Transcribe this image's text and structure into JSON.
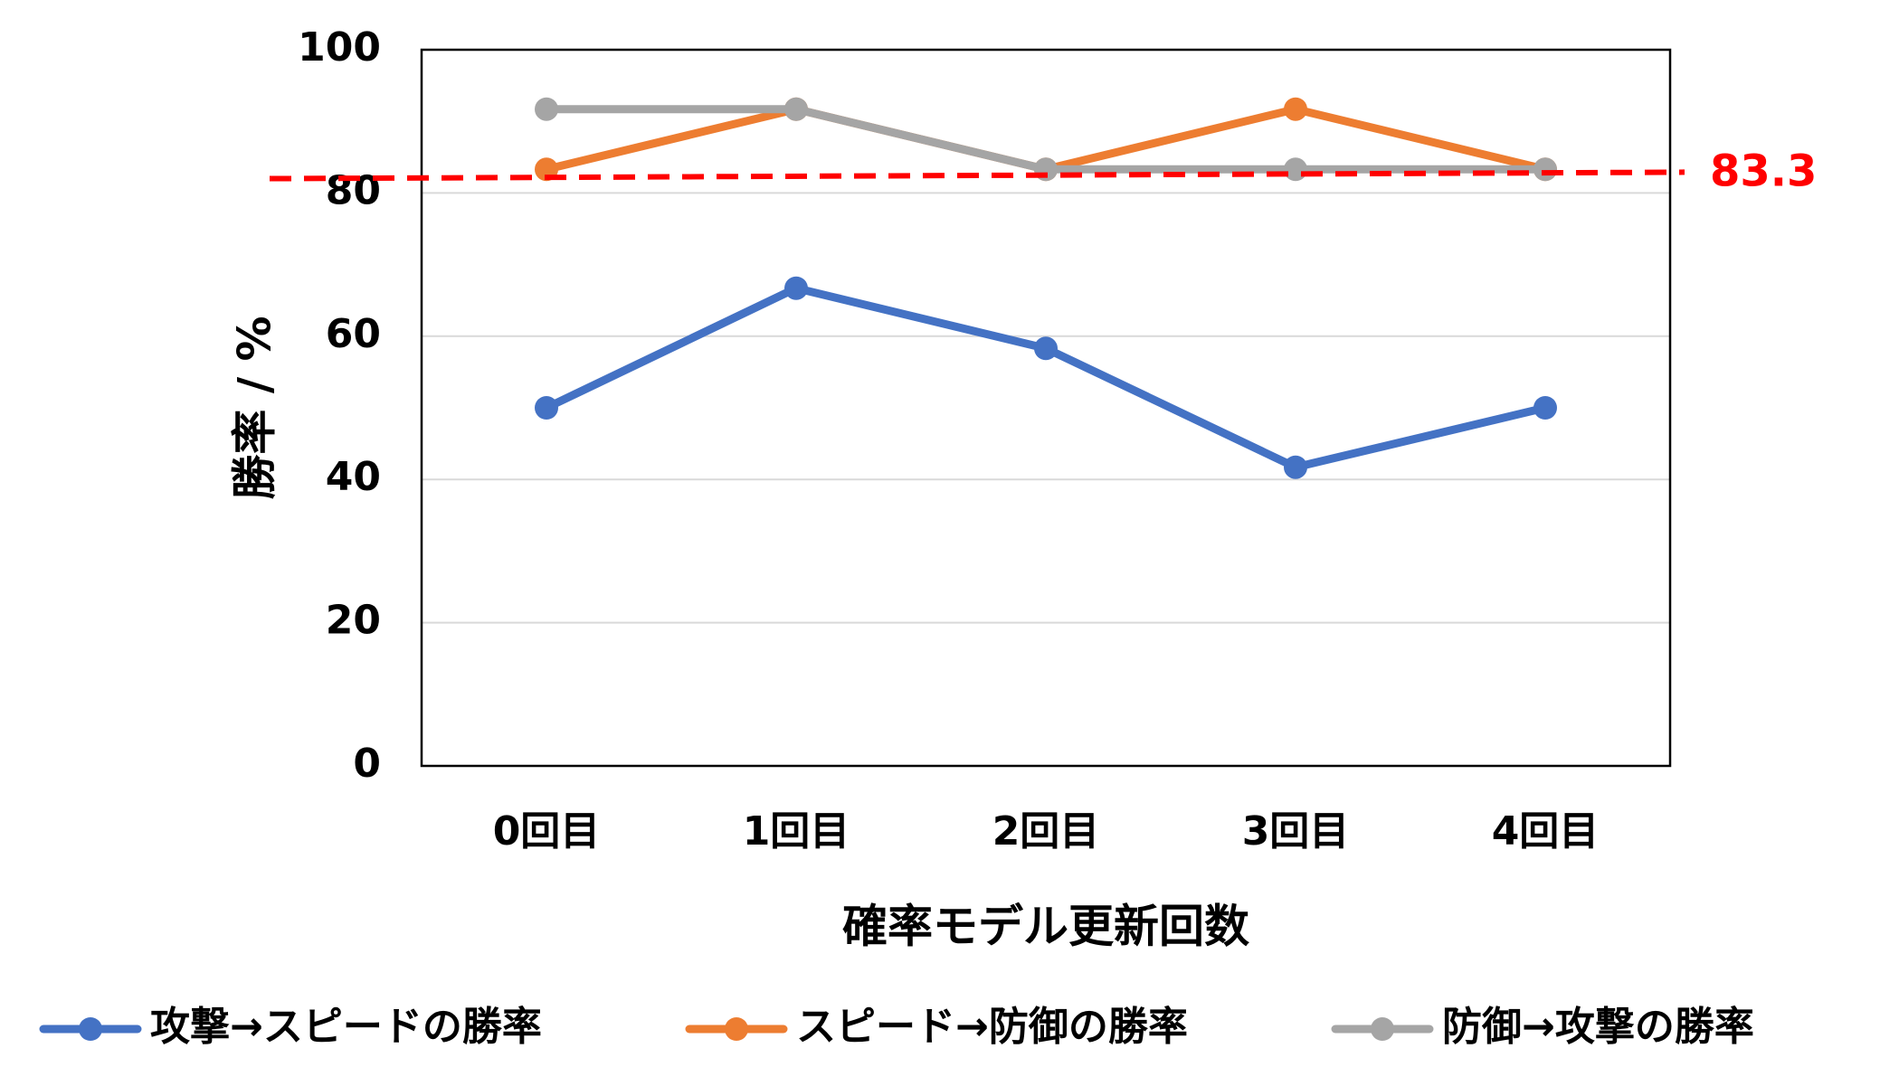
{
  "chart_data": {
    "type": "line",
    "title": "",
    "xlabel": "確率モデル更新回数",
    "ylabel": "勝率 / %",
    "categories": [
      "0回目",
      "1回目",
      "2回目",
      "3回目",
      "4回目"
    ],
    "yticks": [
      "0",
      "20",
      "40",
      "60",
      "80",
      "100"
    ],
    "ylim": [
      0,
      100
    ],
    "grid": true,
    "legend": "bottom",
    "series": [
      {
        "name": "攻撃→スピードの勝率",
        "color": "#4472C4",
        "values": [
          50.0,
          66.7,
          58.3,
          41.7,
          50.0
        ]
      },
      {
        "name": "スピード→防御の勝率",
        "color": "#ED7D31",
        "values": [
          83.3,
          91.7,
          83.3,
          91.7,
          83.3
        ]
      },
      {
        "name": "防御→攻撃の勝率",
        "color": "#A5A5A5",
        "values": [
          91.7,
          91.7,
          83.3,
          83.3,
          83.3
        ]
      }
    ],
    "reference_line": {
      "label": "83.3",
      "start_value": 82.0,
      "end_value": 82.9,
      "color": "#FF0000",
      "style": "dashed"
    },
    "gridline_color": "#D9D9D9",
    "axis_color": "#000000"
  }
}
